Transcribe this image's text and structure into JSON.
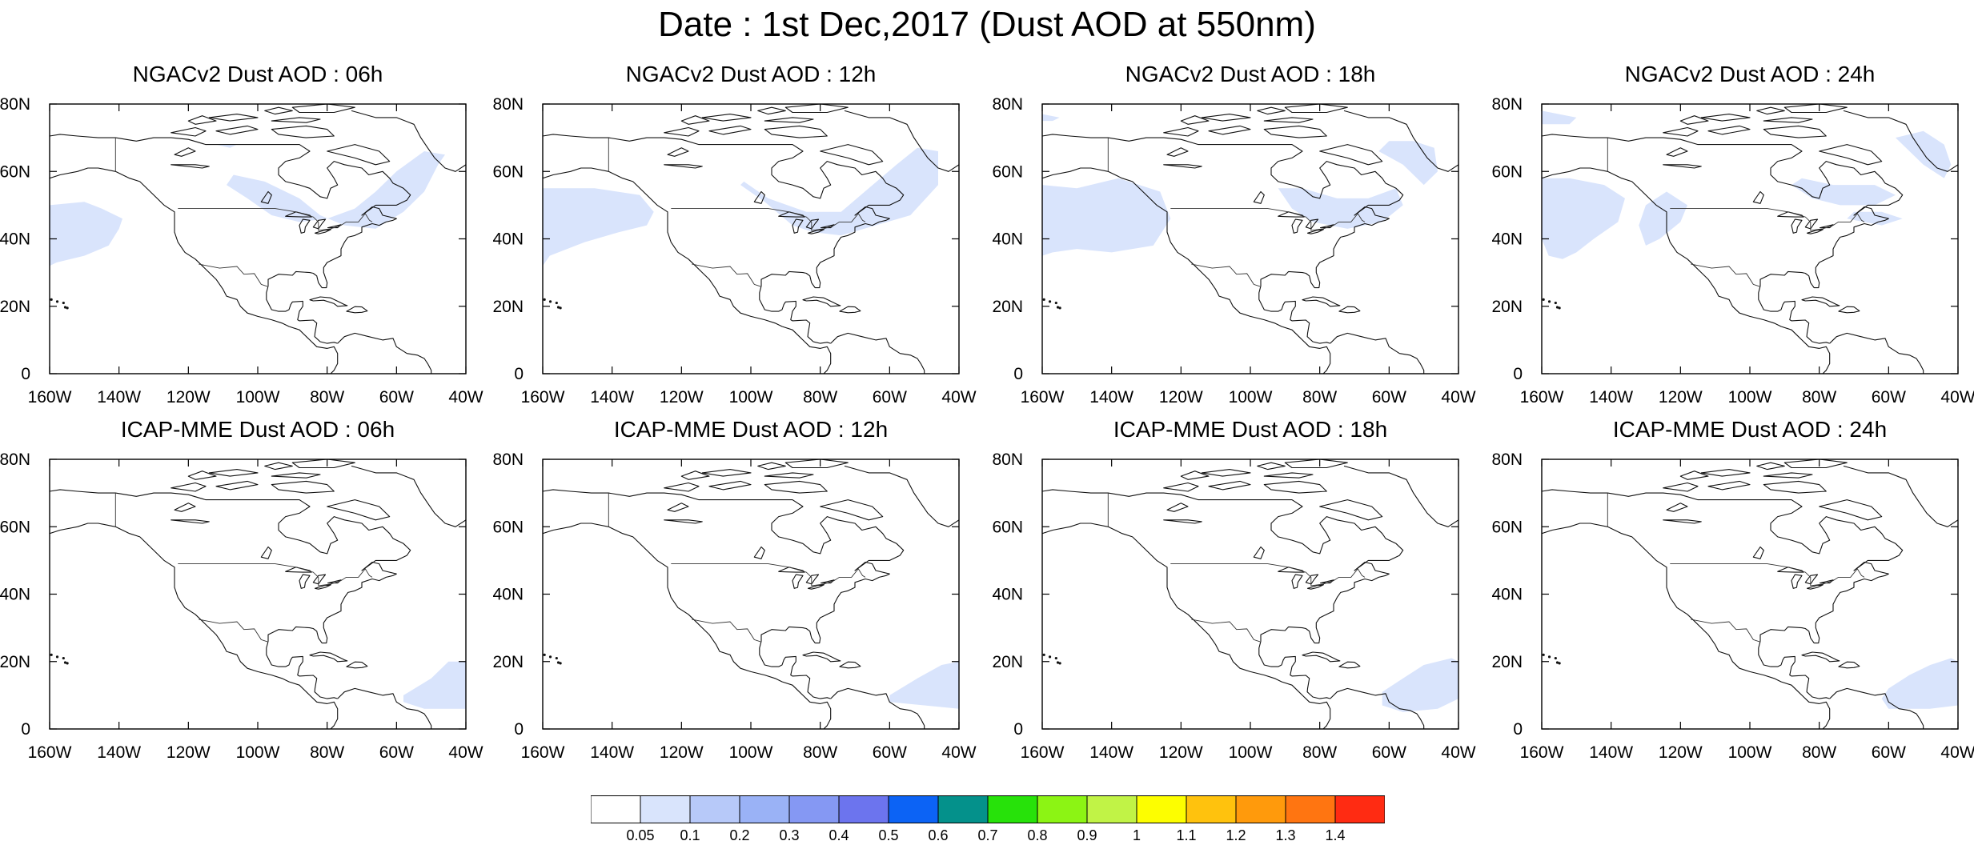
{
  "title": "Date : 1st Dec,2017 (Dust AOD at 550nm)",
  "axes": {
    "x_ticks": [
      "160W",
      "140W",
      "120W",
      "100W",
      "80W",
      "60W",
      "40W"
    ],
    "y_ticks": [
      "80N",
      "60N",
      "40N",
      "20N",
      "0"
    ],
    "x_range": [
      -160,
      -40
    ],
    "y_range": [
      0,
      80
    ]
  },
  "panels": [
    {
      "title": "NGACv2 Dust AOD : 06h",
      "model": "NGACv2",
      "lead": "06h",
      "dust_regions": [
        {
          "level": 0.05,
          "lonlat": [
            [
              -160,
              50
            ],
            [
              -150,
              51
            ],
            [
              -145,
              49
            ],
            [
              -139,
              46
            ],
            [
              -140,
              43
            ],
            [
              -143,
              38
            ],
            [
              -150,
              35
            ],
            [
              -158,
              33
            ],
            [
              -160,
              32
            ]
          ]
        },
        {
          "level": 0.05,
          "lonlat": [
            [
              -107,
              59
            ],
            [
              -98,
              57
            ],
            [
              -88,
              52
            ],
            [
              -82,
              47
            ],
            [
              -75,
              44
            ],
            [
              -66,
              43
            ],
            [
              -58,
              48
            ],
            [
              -52,
              54
            ],
            [
              -48,
              62
            ],
            [
              -46,
              65
            ],
            [
              -52,
              66
            ],
            [
              -60,
              60
            ],
            [
              -66,
              54
            ],
            [
              -72,
              49
            ],
            [
              -80,
              46
            ],
            [
              -88,
              45
            ],
            [
              -96,
              47
            ],
            [
              -103,
              52
            ],
            [
              -109,
              56
            ]
          ]
        },
        {
          "level": 0.05,
          "lonlat": [
            [
              -112,
              68
            ],
            [
              -108,
              67
            ],
            [
              -106,
              68
            ]
          ]
        }
      ]
    },
    {
      "title": "NGACv2 Dust AOD : 12h",
      "model": "NGACv2",
      "lead": "12h",
      "dust_regions": [
        {
          "level": 0.05,
          "lonlat": [
            [
              -160,
              55
            ],
            [
              -145,
              55
            ],
            [
              -132,
              53
            ],
            [
              -128,
              48
            ],
            [
              -130,
              44
            ],
            [
              -138,
              42
            ],
            [
              -148,
              39
            ],
            [
              -158,
              35
            ],
            [
              -160,
              32
            ]
          ]
        },
        {
          "level": 0.05,
          "lonlat": [
            [
              -103,
              56
            ],
            [
              -96,
              51
            ],
            [
              -88,
              44
            ],
            [
              -82,
              42
            ],
            [
              -74,
              41
            ],
            [
              -64,
              44
            ],
            [
              -54,
              47
            ],
            [
              -46,
              56
            ],
            [
              -46,
              66
            ],
            [
              -52,
              67
            ],
            [
              -58,
              62
            ],
            [
              -66,
              55
            ],
            [
              -74,
              48
            ],
            [
              -84,
              48
            ],
            [
              -95,
              52
            ],
            [
              -102,
              57
            ]
          ]
        }
      ]
    },
    {
      "title": "NGACv2 Dust AOD : 18h",
      "model": "NGACv2",
      "lead": "18h",
      "dust_regions": [
        {
          "level": 0.05,
          "lonlat": [
            [
              -160,
              56
            ],
            [
              -150,
              55
            ],
            [
              -138,
              58
            ],
            [
              -126,
              54
            ],
            [
              -123,
              46
            ],
            [
              -128,
              38
            ],
            [
              -140,
              36
            ],
            [
              -150,
              37
            ],
            [
              -157,
              36
            ],
            [
              -160,
              35
            ]
          ]
        },
        {
          "level": 0.05,
          "lonlat": [
            [
              -160,
              77
            ],
            [
              -155,
              76
            ],
            [
              -157,
              75
            ],
            [
              -160,
              75
            ]
          ]
        },
        {
          "level": 0.05,
          "lonlat": [
            [
              -92,
              55
            ],
            [
              -88,
              49
            ],
            [
              -82,
              45
            ],
            [
              -72,
              43
            ],
            [
              -62,
              45
            ],
            [
              -56,
              50
            ],
            [
              -58,
              55
            ],
            [
              -66,
              52
            ],
            [
              -75,
              52
            ],
            [
              -85,
              55
            ]
          ]
        },
        {
          "level": 0.05,
          "lonlat": [
            [
              -63,
              66
            ],
            [
              -56,
              62
            ],
            [
              -50,
              56
            ],
            [
              -46,
              60
            ],
            [
              -47,
              67
            ],
            [
              -53,
              69
            ],
            [
              -60,
              69
            ]
          ]
        }
      ]
    },
    {
      "title": "NGACv2 Dust AOD : 24h",
      "model": "NGACv2",
      "lead": "24h",
      "dust_regions": [
        {
          "level": 0.05,
          "lonlat": [
            [
              -160,
              58
            ],
            [
              -152,
              58
            ],
            [
              -142,
              56
            ],
            [
              -136,
              52
            ],
            [
              -138,
              45
            ],
            [
              -145,
              40
            ],
            [
              -150,
              36
            ],
            [
              -154,
              34
            ],
            [
              -158,
              35
            ],
            [
              -160,
              40
            ]
          ]
        },
        {
          "level": 0.05,
          "lonlat": [
            [
              -124,
              54
            ],
            [
              -118,
              50
            ],
            [
              -120,
              45
            ],
            [
              -126,
              40
            ],
            [
              -130,
              38
            ],
            [
              -132,
              44
            ],
            [
              -130,
              50
            ]
          ]
        },
        {
          "level": 0.05,
          "lonlat": [
            [
              -160,
              78
            ],
            [
              -150,
              76
            ],
            [
              -152,
              74
            ],
            [
              -160,
              74
            ]
          ]
        },
        {
          "level": 0.05,
          "lonlat": [
            [
              -88,
              56
            ],
            [
              -82,
              52
            ],
            [
              -74,
              50
            ],
            [
              -64,
              50
            ],
            [
              -58,
              53
            ],
            [
              -64,
              56
            ],
            [
              -76,
              56
            ],
            [
              -85,
              58
            ]
          ]
        },
        {
          "level": 0.05,
          "lonlat": [
            [
              -72,
              46
            ],
            [
              -62,
              44
            ],
            [
              -56,
              46
            ],
            [
              -62,
              48
            ],
            [
              -70,
              48
            ]
          ]
        },
        {
          "level": 0.05,
          "lonlat": [
            [
              -58,
              70
            ],
            [
              -50,
              62
            ],
            [
              -44,
              58
            ],
            [
              -42,
              62
            ],
            [
              -44,
              68
            ],
            [
              -50,
              72
            ]
          ]
        }
      ]
    },
    {
      "title": "ICAP-MME Dust AOD : 06h",
      "model": "ICAP-MME",
      "lead": "06h",
      "dust_regions": [
        {
          "level": 0.05,
          "lonlat": [
            [
              -58,
              10
            ],
            [
              -50,
              15
            ],
            [
              -45,
              20
            ],
            [
              -40,
              20
            ],
            [
              -40,
              6
            ],
            [
              -52,
              6
            ],
            [
              -58,
              8
            ]
          ]
        }
      ]
    },
    {
      "title": "ICAP-MME Dust AOD : 12h",
      "model": "ICAP-MME",
      "lead": "12h",
      "dust_regions": [
        {
          "level": 0.05,
          "lonlat": [
            [
              -60,
              10
            ],
            [
              -52,
              15
            ],
            [
              -45,
              19
            ],
            [
              -40,
              20
            ],
            [
              -40,
              6
            ],
            [
              -50,
              7
            ],
            [
              -60,
              8
            ]
          ]
        }
      ]
    },
    {
      "title": "ICAP-MME Dust AOD : 18h",
      "model": "ICAP-MME",
      "lead": "18h",
      "dust_regions": [
        {
          "level": 0.05,
          "lonlat": [
            [
              -62,
              11
            ],
            [
              -56,
              15
            ],
            [
              -50,
              19
            ],
            [
              -42,
              21
            ],
            [
              -40,
              20
            ],
            [
              -40,
              9
            ],
            [
              -46,
              6
            ],
            [
              -56,
              5
            ],
            [
              -62,
              7
            ]
          ]
        }
      ]
    },
    {
      "title": "ICAP-MME Dust AOD : 24h",
      "model": "ICAP-MME",
      "lead": "24h",
      "dust_regions": [
        {
          "level": 0.05,
          "lonlat": [
            [
              -60,
              12
            ],
            [
              -54,
              16
            ],
            [
              -48,
              19
            ],
            [
              -42,
              21
            ],
            [
              -40,
              20
            ],
            [
              -40,
              7
            ],
            [
              -48,
              6
            ],
            [
              -60,
              6
            ],
            [
              -62,
              9
            ]
          ]
        }
      ]
    }
  ],
  "colorbar": {
    "colors": [
      "#ffffff",
      "#d9e4fc",
      "#b7c9f9",
      "#9ab2f6",
      "#8598f3",
      "#6c74ee",
      "#0c63f5",
      "#04918b",
      "#27e20a",
      "#8cf414",
      "#c1f346",
      "#fdfe00",
      "#ffc20d",
      "#ff9a0c",
      "#ff7511",
      "#ff2b12"
    ],
    "labels": [
      "0.05",
      "0.1",
      "0.2",
      "0.3",
      "0.4",
      "0.5",
      "0.6",
      "0.7",
      "0.8",
      "0.9",
      "1",
      "1.1",
      "1.2",
      "1.3",
      "1.4"
    ]
  }
}
